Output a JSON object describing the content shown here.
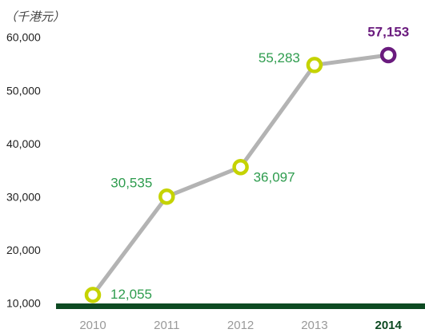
{
  "chart_data": {
    "type": "line",
    "y_axis_label": "（千港元）",
    "categories": [
      "2010",
      "2011",
      "2012",
      "2013",
      "2014"
    ],
    "series": [
      {
        "name": null,
        "color": "#b3b3b3",
        "values": [
          12055,
          30535,
          36097,
          55283,
          57153
        ],
        "value_labels": [
          "12,055",
          "30,535",
          "36,097",
          "55,283",
          "57,153"
        ],
        "point_colors": [
          "#c5d300",
          "#c5d300",
          "#c5d300",
          "#c5d300",
          "#6a1b7e"
        ]
      }
    ],
    "ylim": [
      10000,
      60000
    ],
    "yticks": [
      {
        "value": 10000,
        "label": "10,000"
      },
      {
        "value": 20000,
        "label": "20,000"
      },
      {
        "value": 30000,
        "label": "30,000"
      },
      {
        "value": 40000,
        "label": "40,000"
      },
      {
        "value": 50000,
        "label": "50,000"
      },
      {
        "value": 60000,
        "label": "60,000"
      }
    ],
    "grid": false
  }
}
